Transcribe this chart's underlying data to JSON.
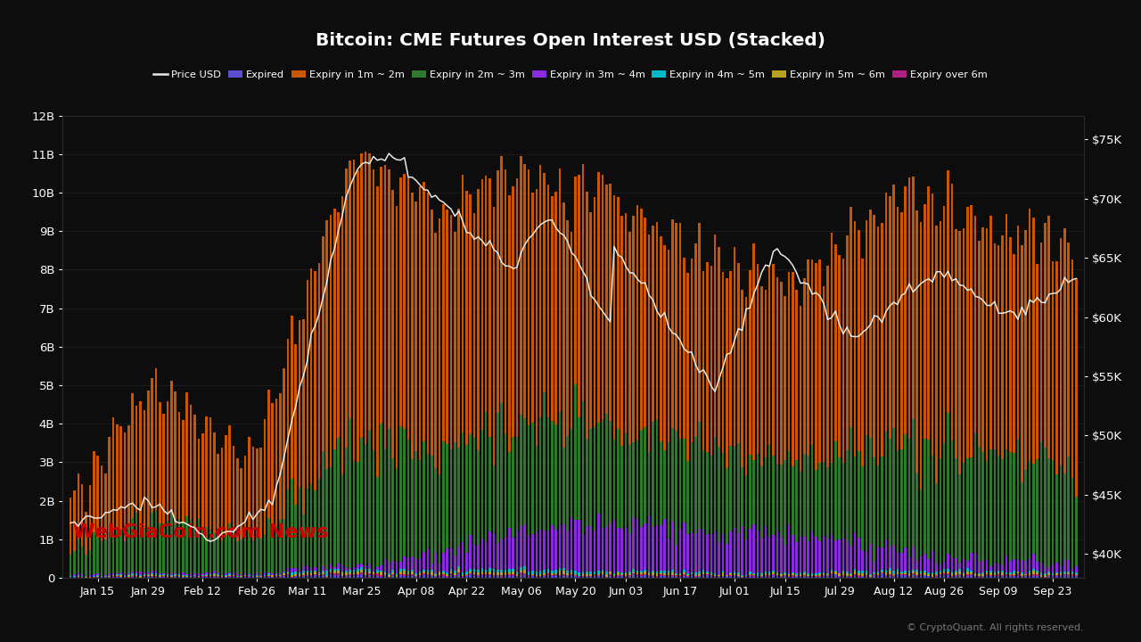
{
  "title": "Bitcoin: CME Futures Open Interest USD (Stacked)",
  "background_color": "#0d0d0d",
  "text_color": "#ffffff",
  "left_ylim": [
    0,
    12000000000
  ],
  "right_ylim": [
    38000,
    77000
  ],
  "left_yticks": [
    0,
    1000000000,
    2000000000,
    3000000000,
    4000000000,
    5000000000,
    6000000000,
    7000000000,
    8000000000,
    9000000000,
    10000000000,
    11000000000,
    12000000000
  ],
  "left_yticklabels": [
    "0",
    "1B",
    "2B",
    "3B",
    "4B",
    "5B",
    "6B",
    "7B",
    "8B",
    "9B",
    "10B",
    "11B",
    "12B"
  ],
  "right_yticks": [
    40000,
    45000,
    50000,
    55000,
    60000,
    65000,
    70000,
    75000
  ],
  "right_yticklabels": [
    "$40K",
    "$45K",
    "$50K",
    "$55K",
    "$60K",
    "$65K",
    "$70K",
    "$75K"
  ],
  "bar_colors": {
    "expired": "#5b4fcf",
    "1m2m": "#cc5500",
    "2m3m": "#2d7a2d",
    "3m4m": "#8b2be0",
    "4m5m": "#00b8c8",
    "5m6m": "#b8a020",
    "over6m": "#b02080"
  },
  "price_color": "#e8e8e8",
  "watermark": "WebGiaCoin.com News",
  "watermark_color": "#cc0000",
  "copyright": "© CryptoQuant. All rights reserved.",
  "x_dates": [
    "Jan 15",
    "Jan 29",
    "Feb 12",
    "Feb 26",
    "Mar 11",
    "Mar 25",
    "Apr 08",
    "Apr 22",
    "May 06",
    "May 20",
    "Jun 03",
    "Jun 17",
    "Jul 01",
    "Jul 15",
    "Jul 29",
    "Aug 12",
    "Aug 26",
    "Sep 09",
    "Sep 23"
  ]
}
